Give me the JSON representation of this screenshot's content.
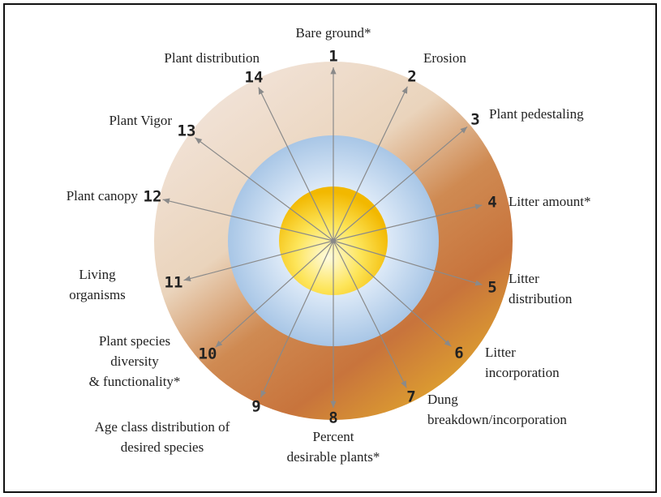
{
  "nodes": [
    {
      "number": 1,
      "label": [
        "Bare ground*"
      ]
    },
    {
      "number": 2,
      "label": [
        "Erosion"
      ]
    },
    {
      "number": 3,
      "label": [
        "Plant pedestaling"
      ]
    },
    {
      "number": 4,
      "label": [
        "Litter amount*"
      ]
    },
    {
      "number": 5,
      "label": [
        "Litter",
        "distribution"
      ]
    },
    {
      "number": 6,
      "label": [
        "Litter",
        "incorporation"
      ]
    },
    {
      "number": 7,
      "label": [
        "Dung",
        "breakdown/incorporation"
      ]
    },
    {
      "number": 8,
      "label": [
        "Percent",
        "desirable plants*"
      ]
    },
    {
      "number": 9,
      "label": [
        "Age class distribution of",
        "desired species"
      ]
    },
    {
      "number": 10,
      "label": [
        "Plant species",
        "diversity",
        "& functionality*"
      ]
    },
    {
      "number": 11,
      "label": [
        "Living",
        "organisms"
      ]
    },
    {
      "number": 12,
      "label": [
        "Plant canopy"
      ]
    },
    {
      "number": 13,
      "label": [
        "Plant Vigor"
      ]
    },
    {
      "number": 14,
      "label": [
        "Plant distribution"
      ]
    }
  ]
}
